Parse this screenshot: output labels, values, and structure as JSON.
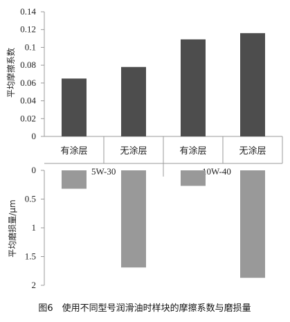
{
  "chart_data": [
    {
      "type": "bar",
      "categories": [
        "有涂层",
        "无涂层",
        "有涂层",
        "无涂层"
      ],
      "groups": [
        "5W-30",
        "10W-40"
      ],
      "values": [
        0.065,
        0.078,
        0.109,
        0.116
      ],
      "ylabel": "平均摩擦系数",
      "ylim": [
        0,
        0.14
      ],
      "yticks": [
        "0",
        "0.02",
        "0.04",
        "0.06",
        "0.08",
        "0.1",
        "0.12",
        "0.14"
      ],
      "color": "#4d4d4d"
    },
    {
      "type": "bar",
      "categories": [
        "有涂层",
        "无涂层",
        "有涂层",
        "无涂层"
      ],
      "groups": [
        "5W-30",
        "10W-40"
      ],
      "values": [
        0.32,
        1.69,
        0.27,
        1.87
      ],
      "ylabel": "平均磨损量/μm",
      "ylim": [
        0,
        2
      ],
      "yticks": [
        "0",
        "0.5",
        "1",
        "1.5",
        "2"
      ],
      "color": "#999999"
    }
  ],
  "caption": "图6　使用不同型号润滑油时样块的摩擦系数与磨损量"
}
